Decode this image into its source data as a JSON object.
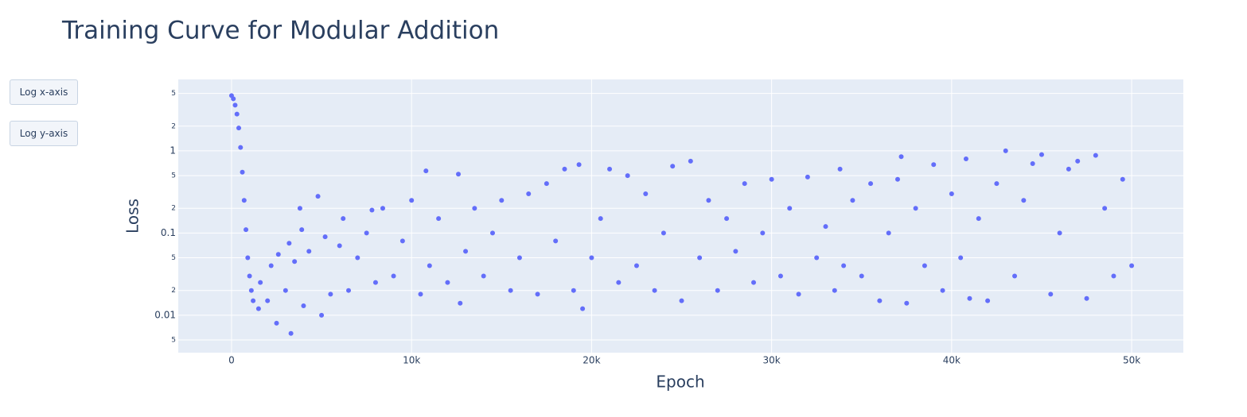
{
  "chart_data": {
    "type": "scatter",
    "title": "Training Curve for Modular Addition",
    "x_label": "Epoch",
    "y_label": "Loss",
    "buttons": [
      "Log x-axis",
      "Log y-axis"
    ],
    "color": "#636efa",
    "log_y": true,
    "grid": true,
    "xlim": [
      -2960,
      52870
    ],
    "ylim": [
      0.0035,
      7.4
    ],
    "xticks": [
      0,
      {
        "value": 10000,
        "label": "10k"
      },
      {
        "value": 20000,
        "label": "20k"
      },
      {
        "value": 30000,
        "label": "30k"
      },
      {
        "value": 40000,
        "label": "40k"
      },
      {
        "value": 50000,
        "label": "50k"
      }
    ],
    "yticks": [
      {
        "value": 0.005,
        "label": "5"
      },
      0.01,
      {
        "value": 0.02,
        "label": "2"
      },
      {
        "value": 0.05,
        "label": "5"
      },
      0.1,
      {
        "value": 0.2,
        "label": "2"
      },
      {
        "value": 0.5,
        "label": "5"
      },
      1,
      {
        "value": 2,
        "label": "2"
      },
      {
        "value": 5,
        "label": "5"
      }
    ],
    "x": [
      0,
      100,
      200,
      300,
      400,
      500,
      600,
      700,
      800,
      900,
      1000,
      1100,
      1200,
      1500,
      1600,
      2000,
      2200,
      2500,
      2600,
      3000,
      3200,
      3300,
      3500,
      3800,
      3900,
      4000,
      4300,
      4800,
      5000,
      5200,
      5500,
      6000,
      6200,
      6500,
      7000,
      7500,
      7800,
      8000,
      8400,
      9000,
      9500,
      10000,
      10500,
      10800,
      11000,
      11500,
      12000,
      12600,
      12700,
      13000,
      13500,
      14000,
      14500,
      15000,
      15500,
      16000,
      16500,
      17000,
      17500,
      18000,
      18500,
      19000,
      19300,
      19500,
      20000,
      20500,
      21000,
      21500,
      22000,
      22500,
      23000,
      23500,
      24000,
      24500,
      25000,
      25500,
      26000,
      26500,
      27000,
      27500,
      28000,
      28500,
      29000,
      29500,
      30000,
      30500,
      31000,
      31500,
      32000,
      32500,
      33000,
      33500,
      33800,
      34000,
      34500,
      35000,
      35500,
      36000,
      36500,
      37000,
      37200,
      37500,
      38000,
      38500,
      39000,
      39500,
      40000,
      40500,
      40800,
      41000,
      41500,
      42000,
      42500,
      43000,
      43500,
      44000,
      44500,
      45000,
      45500,
      46000,
      46500,
      47000,
      47500,
      48000,
      48500,
      49000,
      49500,
      50000
    ],
    "values": [
      4.7,
      4.3,
      3.6,
      2.8,
      1.9,
      1.1,
      0.55,
      0.25,
      0.11,
      0.05,
      0.03,
      0.02,
      0.015,
      0.012,
      0.025,
      0.015,
      0.04,
      0.008,
      0.055,
      0.02,
      0.075,
      0.006,
      0.045,
      0.2,
      0.11,
      0.013,
      0.06,
      0.28,
      0.01,
      0.09,
      0.018,
      0.07,
      0.15,
      0.02,
      0.05,
      0.1,
      0.19,
      0.025,
      0.2,
      0.03,
      0.08,
      0.25,
      0.018,
      0.57,
      0.04,
      0.15,
      0.025,
      0.52,
      0.014,
      0.06,
      0.2,
      0.03,
      0.1,
      0.25,
      0.02,
      0.05,
      0.3,
      0.018,
      0.4,
      0.08,
      0.6,
      0.02,
      0.68,
      0.012,
      0.05,
      0.15,
      0.6,
      0.025,
      0.5,
      0.04,
      0.3,
      0.02,
      0.1,
      0.65,
      0.015,
      0.75,
      0.05,
      0.25,
      0.02,
      0.15,
      0.06,
      0.4,
      0.025,
      0.1,
      0.45,
      0.03,
      0.2,
      0.018,
      0.48,
      0.05,
      0.12,
      0.02,
      0.6,
      0.04,
      0.25,
      0.03,
      0.4,
      0.015,
      0.1,
      0.45,
      0.85,
      0.014,
      0.2,
      0.04,
      0.68,
      0.02,
      0.3,
      0.05,
      0.8,
      0.016,
      0.15,
      0.015,
      0.4,
      1.0,
      0.03,
      0.25,
      0.7,
      0.9,
      0.018,
      0.1,
      0.6,
      0.75,
      0.016,
      0.88,
      0.2,
      0.03,
      0.45,
      0.04
    ]
  }
}
